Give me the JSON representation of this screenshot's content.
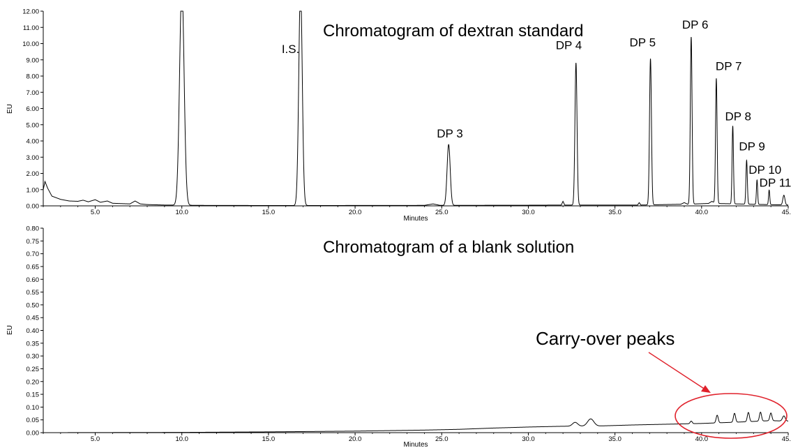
{
  "chart_data": [
    {
      "type": "line",
      "title": "Chromatogram of dextran standard",
      "xlabel": "Minutes",
      "ylabel": "EU",
      "xlim": [
        2.0,
        45.0
      ],
      "ylim": [
        0.0,
        12.0
      ],
      "grid": false,
      "x_ticks": [
        5.0,
        10.0,
        15.0,
        20.0,
        25.0,
        30.0,
        35.0,
        40.0,
        45.0
      ],
      "x_tick_labels": [
        "5.0",
        "10.0",
        "15.0",
        "20.0",
        "25.0",
        "30.0",
        "35.0",
        "40.0",
        "45.0"
      ],
      "y_ticks": [
        0,
        1,
        2,
        3,
        4,
        5,
        6,
        7,
        8,
        9,
        10,
        11,
        12
      ],
      "y_tick_labels": [
        "0.00",
        "1.00",
        "2.00",
        "3.00",
        "4.00",
        "5.00",
        "6.00",
        "7.00",
        "8.00",
        "9.00",
        "10.00",
        "11.00",
        "12.00"
      ],
      "baseline": [
        [
          2.0,
          1.0
        ],
        [
          2.1,
          1.5
        ],
        [
          2.25,
          1.1
        ],
        [
          2.5,
          0.6
        ],
        [
          3.0,
          0.4
        ],
        [
          3.5,
          0.3
        ],
        [
          4.0,
          0.28
        ],
        [
          4.3,
          0.35
        ],
        [
          4.6,
          0.25
        ],
        [
          5.0,
          0.38
        ],
        [
          5.3,
          0.22
        ],
        [
          5.7,
          0.3
        ],
        [
          6.0,
          0.16
        ],
        [
          6.5,
          0.14
        ],
        [
          7.0,
          0.12
        ],
        [
          7.3,
          0.3
        ],
        [
          7.6,
          0.12
        ],
        [
          8.0,
          0.08
        ],
        [
          9.0,
          0.05
        ],
        [
          11.0,
          0.03
        ],
        [
          16.0,
          0.02
        ],
        [
          24.0,
          0.03
        ],
        [
          24.5,
          0.12
        ],
        [
          24.9,
          0.03
        ],
        [
          30.0,
          0.04
        ],
        [
          31.9,
          0.05
        ],
        [
          32.0,
          0.28
        ],
        [
          32.1,
          0.05
        ],
        [
          36.3,
          0.05
        ],
        [
          36.4,
          0.2
        ],
        [
          36.5,
          0.05
        ],
        [
          38.8,
          0.1
        ],
        [
          39.0,
          0.2
        ],
        [
          39.2,
          0.1
        ],
        [
          40.4,
          0.15
        ],
        [
          40.6,
          0.28
        ],
        [
          40.8,
          0.15
        ],
        [
          45.0,
          0.05
        ]
      ],
      "peaks": [
        {
          "x": 10.0,
          "height": 13.5,
          "width": 0.13,
          "label": ""
        },
        {
          "x": 16.85,
          "height": 13.5,
          "width": 0.1,
          "label": "I.S."
        },
        {
          "x": 25.4,
          "height": 3.75,
          "width": 0.09,
          "label": "DP 3"
        },
        {
          "x": 32.75,
          "height": 8.75,
          "width": 0.06,
          "label": "DP 4"
        },
        {
          "x": 37.05,
          "height": 9.0,
          "width": 0.055,
          "label": "DP 5"
        },
        {
          "x": 39.4,
          "height": 10.3,
          "width": 0.05,
          "label": "DP 6"
        },
        {
          "x": 40.85,
          "height": 7.7,
          "width": 0.045,
          "label": "DP 7"
        },
        {
          "x": 41.8,
          "height": 4.8,
          "width": 0.04,
          "label": "DP 8"
        },
        {
          "x": 42.6,
          "height": 2.7,
          "width": 0.04,
          "label": "DP 9"
        },
        {
          "x": 43.2,
          "height": 1.5,
          "width": 0.035,
          "label": "DP 10"
        },
        {
          "x": 43.9,
          "height": 0.9,
          "width": 0.035,
          "label": "DP 11"
        },
        {
          "x": 44.75,
          "height": 0.6,
          "width": 0.06,
          "label": ""
        }
      ]
    },
    {
      "type": "line",
      "title": "Chromatogram of a blank solution",
      "xlabel": "Minutes",
      "ylabel": "EU",
      "xlim": [
        2.0,
        45.0
      ],
      "ylim": [
        0.0,
        0.8
      ],
      "grid": false,
      "x_ticks": [
        5.0,
        10.0,
        15.0,
        20.0,
        25.0,
        30.0,
        35.0,
        40.0,
        45.0
      ],
      "x_tick_labels": [
        "5.0",
        "10.0",
        "15.0",
        "20.0",
        "25.0",
        "30.0",
        "35.0",
        "40.0",
        "45.0"
      ],
      "y_ticks": [
        0,
        0.05,
        0.1,
        0.15,
        0.2,
        0.25,
        0.3,
        0.35,
        0.4,
        0.45,
        0.5,
        0.55,
        0.6,
        0.65,
        0.7,
        0.75,
        0.8
      ],
      "y_tick_labels": [
        "0.00",
        "0.05",
        "0.10",
        "0.15",
        "0.20",
        "0.25",
        "0.30",
        "0.35",
        "0.40",
        "0.45",
        "0.50",
        "0.55",
        "0.60",
        "0.65",
        "0.70",
        "0.75",
        "0.80"
      ],
      "baseline": [
        [
          2.0,
          0.0
        ],
        [
          10.0,
          0.001
        ],
        [
          15.0,
          0.003
        ],
        [
          20.0,
          0.006
        ],
        [
          24.0,
          0.01
        ],
        [
          26.0,
          0.013
        ],
        [
          28.0,
          0.018
        ],
        [
          30.0,
          0.022
        ],
        [
          32.0,
          0.025
        ],
        [
          34.0,
          0.026
        ],
        [
          36.0,
          0.03
        ],
        [
          38.0,
          0.033
        ],
        [
          40.0,
          0.036
        ],
        [
          42.0,
          0.041
        ],
        [
          44.0,
          0.047
        ],
        [
          45.0,
          0.045
        ]
      ],
      "peaks": [
        {
          "x": 32.7,
          "height": 0.015,
          "width": 0.15,
          "label": ""
        },
        {
          "x": 33.6,
          "height": 0.028,
          "width": 0.18,
          "label": ""
        },
        {
          "x": 39.4,
          "height": 0.01,
          "width": 0.06,
          "label": ""
        },
        {
          "x": 40.9,
          "height": 0.03,
          "width": 0.06,
          "label": ""
        },
        {
          "x": 41.9,
          "height": 0.035,
          "width": 0.06,
          "label": ""
        },
        {
          "x": 42.7,
          "height": 0.036,
          "width": 0.06,
          "label": ""
        },
        {
          "x": 43.4,
          "height": 0.035,
          "width": 0.06,
          "label": ""
        },
        {
          "x": 44.0,
          "height": 0.03,
          "width": 0.06,
          "label": ""
        },
        {
          "x": 44.75,
          "height": 0.02,
          "width": 0.08,
          "label": ""
        }
      ],
      "annotation": {
        "text": "Carry-over peaks",
        "color": "#e0212b"
      }
    }
  ]
}
